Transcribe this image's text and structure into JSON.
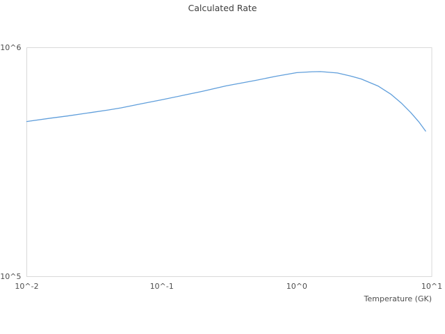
{
  "chart_data": {
    "type": "line",
    "title": "Calculated Rate",
    "xlabel": "Temperature (GK)",
    "ylabel": "",
    "x_scale": "log",
    "y_scale": "log",
    "xlim": [
      0.01,
      10
    ],
    "ylim": [
      100000,
      1000000
    ],
    "grid": false,
    "legend": false,
    "x_ticks": [
      {
        "value": 0.01,
        "label": "10^-2"
      },
      {
        "value": 0.1,
        "label": "10^-1"
      },
      {
        "value": 1,
        "label": "10^0"
      },
      {
        "value": 10,
        "label": "10^1"
      }
    ],
    "y_ticks": [
      {
        "value": 100000,
        "label": "10^5"
      },
      {
        "value": 1000000,
        "label": "10^6"
      }
    ],
    "colors": {
      "line": "#5f9edb",
      "plot_border": "#d9d9d9",
      "title_text": "#3d3d3d",
      "tick_text": "#4d4d4d",
      "background": "#ffffff"
    },
    "series": [
      {
        "name": "Calculated Rate",
        "color": "#5f9edb",
        "points": [
          [
            0.01,
            476000
          ],
          [
            0.015,
            492000
          ],
          [
            0.02,
            503000
          ],
          [
            0.03,
            521000
          ],
          [
            0.04,
            534000
          ],
          [
            0.05,
            546000
          ],
          [
            0.07,
            568000
          ],
          [
            0.1,
            592000
          ],
          [
            0.15,
            622000
          ],
          [
            0.2,
            645000
          ],
          [
            0.3,
            681000
          ],
          [
            0.4,
            703000
          ],
          [
            0.5,
            720000
          ],
          [
            0.7,
            750000
          ],
          [
            1.0,
            778000
          ],
          [
            1.3,
            785000
          ],
          [
            1.5,
            786000
          ],
          [
            2.0,
            775000
          ],
          [
            2.5,
            752000
          ],
          [
            3.0,
            730000
          ],
          [
            4.0,
            680000
          ],
          [
            5.0,
            625000
          ],
          [
            6.0,
            570000
          ],
          [
            7.0,
            520000
          ],
          [
            8.0,
            475000
          ],
          [
            9.0,
            432000
          ]
        ]
      }
    ]
  }
}
